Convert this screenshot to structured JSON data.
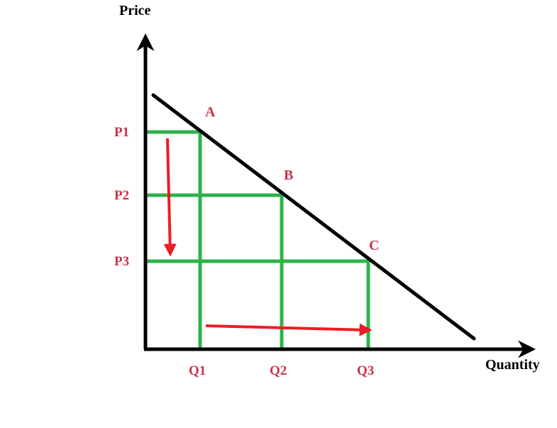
{
  "axes": {
    "y_title": "Price",
    "x_title": "Quantity"
  },
  "prices": [
    "P1",
    "P2",
    "P3"
  ],
  "quantities": [
    "Q1",
    "Q2",
    "Q3"
  ],
  "points": [
    "A",
    "B",
    "C"
  ],
  "colors": {
    "axis": "#000000",
    "demand_line": "#000000",
    "guide_lines": "#2db34a",
    "labels": "#c8334a",
    "arrows": "#ee1c24"
  }
}
